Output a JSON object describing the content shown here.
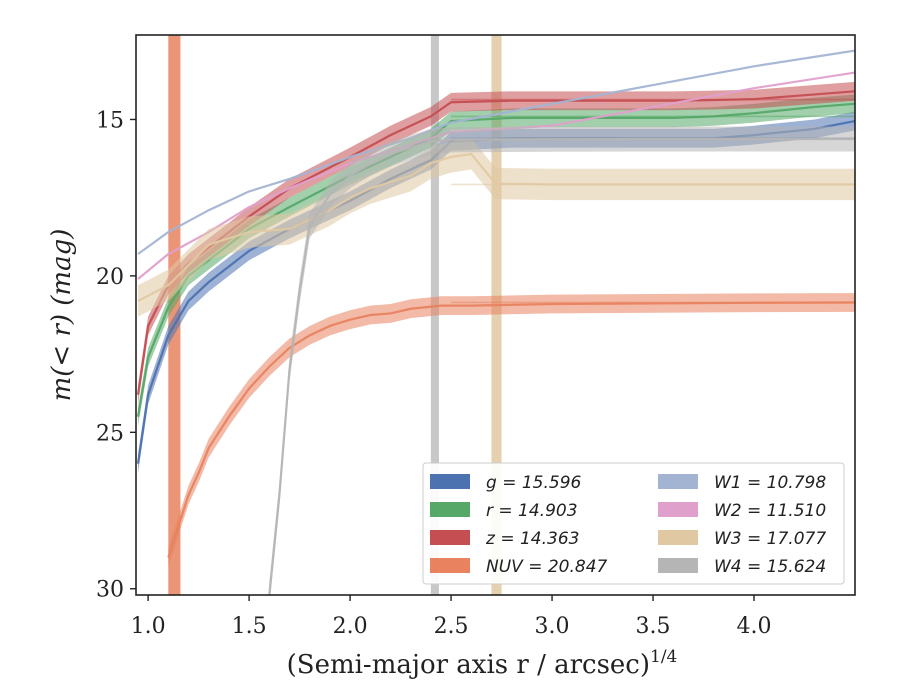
{
  "chart_data": {
    "type": "line",
    "title": "",
    "xlabel": "(Semi-major axis r / arcsec)",
    "xlabel_sup": "1/4",
    "ylabel": "m(< r) (mag)",
    "xlim": [
      0.94,
      4.5
    ],
    "ylim": [
      30.2,
      12.3
    ],
    "y_inverted": true,
    "grid": false,
    "legend_position": "lower-right",
    "x_ticks": [
      "1.0",
      "1.5",
      "2.0",
      "2.5",
      "3.0",
      "3.5",
      "4.0"
    ],
    "y_ticks": [
      "15",
      "20",
      "25",
      "30"
    ],
    "series": [
      {
        "name": "g",
        "legend": "g = 15.596",
        "asymptote": 15.596,
        "color": "#4c72b0",
        "x": [
          0.95,
          1.0,
          1.1,
          1.2,
          1.3,
          1.5,
          1.7,
          2.0,
          2.2,
          2.4,
          2.5,
          2.8,
          3.2,
          3.6,
          3.8,
          4.0,
          4.3,
          4.5
        ],
        "y": [
          26.0,
          23.8,
          21.9,
          20.8,
          20.2,
          19.2,
          18.5,
          17.6,
          16.9,
          16.3,
          15.7,
          15.6,
          15.6,
          15.6,
          15.6,
          15.5,
          15.3,
          15.05
        ],
        "band": 0.3
      },
      {
        "name": "r",
        "legend": "r = 14.903",
        "asymptote": 14.903,
        "color": "#55a868",
        "x": [
          0.95,
          1.0,
          1.1,
          1.2,
          1.3,
          1.5,
          1.7,
          2.0,
          2.2,
          2.4,
          2.5,
          2.8,
          3.2,
          3.6,
          3.8,
          4.0,
          4.3,
          4.5
        ],
        "y": [
          24.5,
          22.6,
          21.0,
          20.0,
          19.5,
          18.5,
          17.8,
          16.8,
          16.2,
          15.6,
          15.05,
          14.95,
          14.95,
          14.95,
          14.9,
          14.8,
          14.6,
          14.5
        ],
        "band": 0.3
      },
      {
        "name": "z",
        "legend": "z = 14.363",
        "asymptote": 14.363,
        "color": "#c44e52",
        "x": [
          0.95,
          1.0,
          1.1,
          1.2,
          1.3,
          1.5,
          1.7,
          2.0,
          2.2,
          2.4,
          2.5,
          2.8,
          3.2,
          3.6,
          3.8,
          4.0,
          4.3,
          4.5
        ],
        "y": [
          23.8,
          21.6,
          20.3,
          19.6,
          19.1,
          18.1,
          17.2,
          16.2,
          15.5,
          14.9,
          14.45,
          14.4,
          14.4,
          14.4,
          14.38,
          14.35,
          14.2,
          14.1
        ],
        "band": 0.3
      },
      {
        "name": "NUV",
        "legend": "NUV = 20.847",
        "asymptote": 20.847,
        "color": "#e8825f",
        "x": [
          1.1,
          1.15,
          1.2,
          1.25,
          1.3,
          1.4,
          1.5,
          1.6,
          1.7,
          1.8,
          1.9,
          2.0,
          2.1,
          2.2,
          2.3,
          2.45,
          2.6,
          3.0,
          3.5,
          4.0,
          4.5
        ],
        "y": [
          29.0,
          28.0,
          27.0,
          26.3,
          25.5,
          24.5,
          23.6,
          22.9,
          22.3,
          21.9,
          21.6,
          21.4,
          21.25,
          21.2,
          21.05,
          20.95,
          20.95,
          20.9,
          20.88,
          20.86,
          20.85
        ],
        "band": 0.3
      },
      {
        "name": "W1",
        "legend": "W1 = 10.798",
        "asymptote": 10.798,
        "color": "#a3b4d3",
        "x": [
          0.95,
          1.1,
          1.3,
          1.5,
          1.7,
          2.0,
          2.3,
          2.5,
          3.0,
          3.5,
          4.0,
          4.5
        ],
        "y": [
          19.3,
          18.6,
          17.9,
          17.3,
          16.9,
          16.2,
          15.6,
          15.1,
          14.5,
          13.9,
          13.3,
          12.8
        ],
        "band": 0.0
      },
      {
        "name": "W2",
        "legend": "W2 = 11.510",
        "asymptote": 11.51,
        "color": "#e0a0cc",
        "x": [
          0.95,
          1.1,
          1.3,
          1.5,
          1.7,
          2.0,
          2.3,
          2.5,
          3.0,
          3.5,
          4.0,
          4.5
        ],
        "y": [
          20.1,
          19.3,
          18.6,
          17.8,
          17.2,
          16.4,
          15.8,
          15.4,
          15.2,
          14.6,
          14.0,
          13.5
        ],
        "band": 0.0
      },
      {
        "name": "W3",
        "legend": "W3 = 17.077",
        "asymptote": 17.077,
        "color": "#e0c9a2",
        "x": [
          0.95,
          1.1,
          1.3,
          1.5,
          1.7,
          1.9,
          2.0,
          2.1,
          2.2,
          2.3,
          2.4,
          2.5,
          2.6,
          2.72,
          3.0,
          3.5,
          4.0,
          4.5
        ],
        "y": [
          20.8,
          20.3,
          19.0,
          18.6,
          18.5,
          17.9,
          17.5,
          17.2,
          17.0,
          16.8,
          16.4,
          16.2,
          16.1,
          17.05,
          17.077,
          17.077,
          17.077,
          17.077
        ],
        "band": 0.5
      },
      {
        "name": "W4",
        "legend": "W4 = 15.624",
        "asymptote": 15.624,
        "color": "#b5b5b5",
        "x": [
          1.6,
          1.65,
          1.7,
          1.75,
          1.8,
          1.9,
          2.0,
          2.1,
          2.2,
          2.3,
          2.4,
          2.5,
          3.0,
          3.5,
          4.0,
          4.5
        ],
        "y": [
          30.2,
          27.0,
          23.0,
          20.5,
          18.4,
          17.4,
          16.8,
          16.4,
          16.1,
          15.9,
          15.7,
          15.65,
          15.63,
          15.624,
          15.624,
          15.624
        ],
        "band": 0.4
      }
    ]
  }
}
